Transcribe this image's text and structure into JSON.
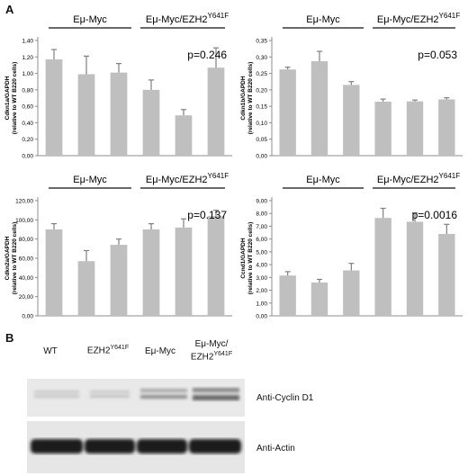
{
  "panel_a": "A",
  "panel_b": "B",
  "group_labels": {
    "g1": "Eμ-Myc",
    "g2": "Eμ-Myc/EZH2",
    "g2_sup": "Y641F"
  },
  "chart_data": [
    {
      "type": "bar",
      "ylabel": "Cdkn1a/GAPDH",
      "ylabel2": "(relative to WT B220 cells)",
      "ylim": [
        0,
        1.4
      ],
      "yticks": [
        "0,00",
        "0,20",
        "0,40",
        "0,60",
        "0,80",
        "1,00",
        "1,20",
        "1,40"
      ],
      "values": [
        1.17,
        0.99,
        1.01,
        0.8,
        0.49,
        1.07
      ],
      "errors": [
        0.12,
        0.22,
        0.11,
        0.12,
        0.07,
        0.24
      ],
      "pvalue": "p=0.246"
    },
    {
      "type": "bar",
      "ylabel": "Cdkn1b/GAPDH",
      "ylabel2": "(relative to WT B220 cells)",
      "ylim": [
        0,
        0.35
      ],
      "yticks": [
        "0,00",
        "0,05",
        "0,10",
        "0,15",
        "0,20",
        "0,25",
        "0,30",
        "0,35"
      ],
      "values": [
        0.262,
        0.287,
        0.215,
        0.164,
        0.165,
        0.171
      ],
      "errors": [
        0.007,
        0.03,
        0.01,
        0.008,
        0.004,
        0.005
      ],
      "pvalue": "p=0.053"
    },
    {
      "type": "bar",
      "ylabel": "Cdkn2a/GAPDH",
      "ylabel2": "(relative to WT B220 cells)",
      "ylim": [
        0,
        120
      ],
      "yticks": [
        "0,00",
        "20,00",
        "40,00",
        "60,00",
        "80,00",
        "100,00",
        "120,00"
      ],
      "values": [
        90,
        57,
        74,
        90,
        92,
        104
      ],
      "errors": [
        6,
        11,
        6,
        6,
        9,
        6
      ],
      "pvalue": "p=0.137"
    },
    {
      "type": "bar",
      "ylabel": "Ccnd1/GAPDH",
      "ylabel2": "(relative to WT B220 cells)",
      "ylim": [
        0,
        9
      ],
      "yticks": [
        "0,00",
        "1,00",
        "2,00",
        "3,00",
        "4,00",
        "5,00",
        "6,00",
        "7,00",
        "8,00",
        "9,00"
      ],
      "values": [
        3.15,
        2.6,
        3.55,
        7.65,
        7.35,
        6.4
      ],
      "errors": [
        0.3,
        0.25,
        0.55,
        0.75,
        0.7,
        0.75
      ],
      "pvalue": "p=0.0016"
    }
  ],
  "blot": {
    "lanes": [
      {
        "line1": "WT",
        "line2": "",
        "sup": ""
      },
      {
        "line1": "EZH2",
        "line2": "",
        "sup": "Y641F"
      },
      {
        "line1": "Eμ-Myc",
        "line2": "",
        "sup": ""
      },
      {
        "line1": "Eμ-Myc/",
        "line2": "EZH2",
        "sup": "Y641F"
      }
    ],
    "antibodies": [
      "Anti-Cyclin D1",
      "Anti-Actin"
    ]
  },
  "colors": {
    "bar": "#bfbfbf",
    "error": "#7f7f7f",
    "axis": "#8c8c8c"
  }
}
